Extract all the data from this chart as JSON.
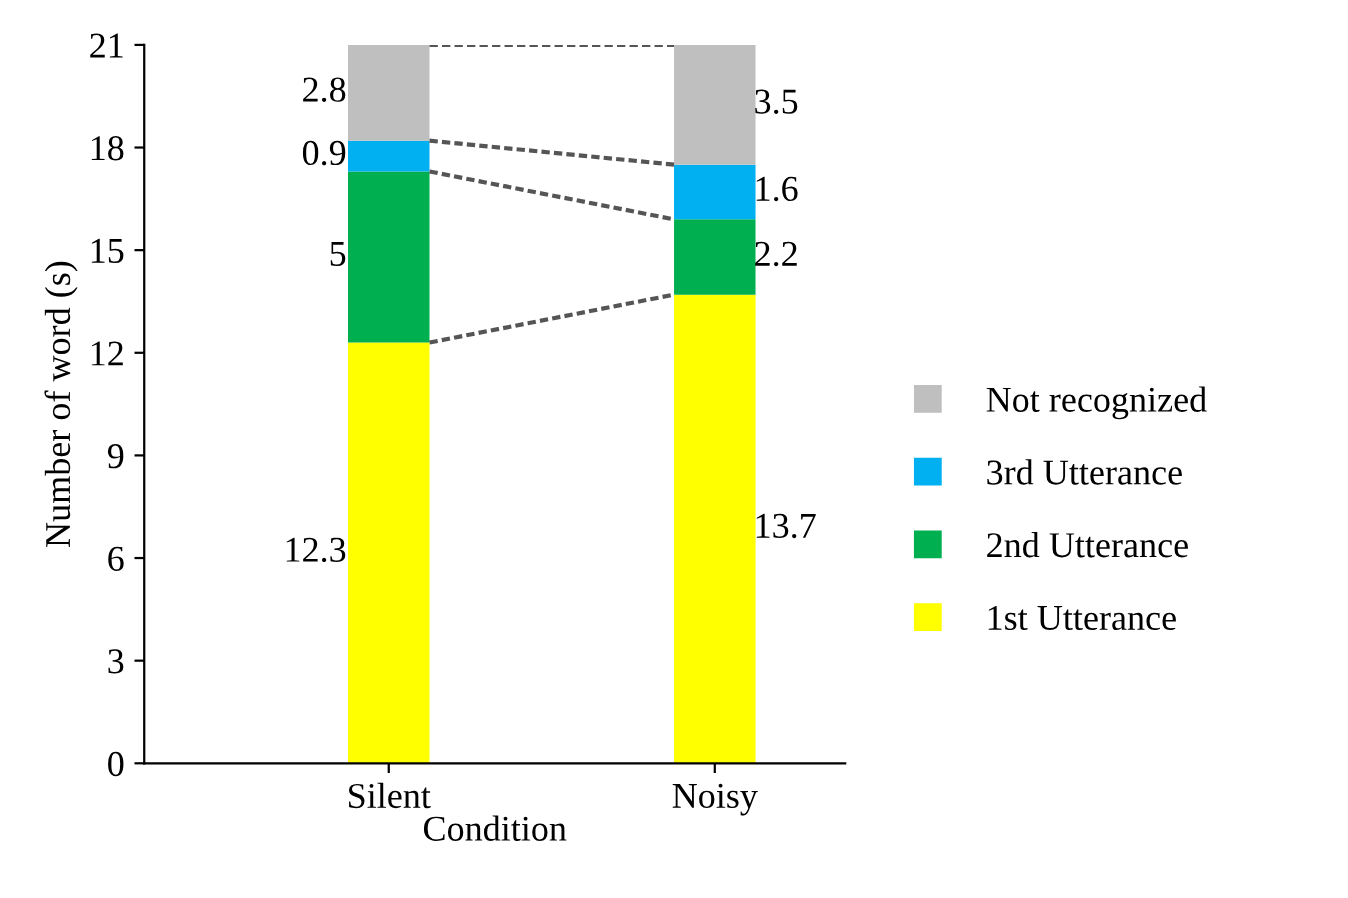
{
  "chart_data": {
    "type": "bar",
    "stacked": true,
    "xlabel": "Condition",
    "ylabel": "Number of word (s)",
    "categories": [
      "Silent",
      "Noisy"
    ],
    "series": [
      {
        "name": "1st Utterance",
        "color": "#ffff00",
        "values": [
          12.3,
          13.7
        ]
      },
      {
        "name": "2nd Utterance",
        "color": "#00b050",
        "values": [
          5,
          2.2
        ]
      },
      {
        "name": "3rd Utterance",
        "color": "#00b0f0",
        "values": [
          0.9,
          1.6
        ]
      },
      {
        "name": "Not recognized",
        "color": "#bfbfbf",
        "values": [
          2.8,
          3.5
        ]
      }
    ],
    "ylim": [
      0,
      21
    ],
    "yticks": [
      0,
      3,
      6,
      9,
      12,
      15,
      18,
      21
    ],
    "grid": false,
    "legend": "right",
    "data_labels": true
  }
}
